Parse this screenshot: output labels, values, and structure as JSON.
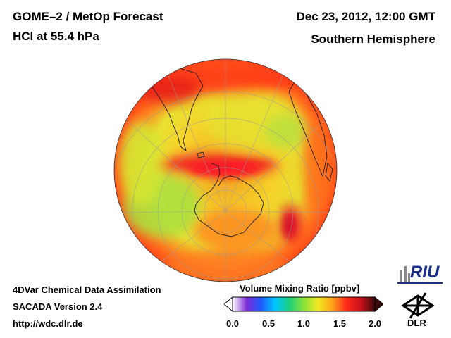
{
  "header": {
    "title_line1": "GOME–2 / MetOp Forecast",
    "title_line2": "HCl at 55.4 hPa",
    "datetime": "Dec 23, 2012, 12:00 GMT",
    "region": "Southern Hemisphere"
  },
  "footer": {
    "line1": "4DVar Chemical Data Assimilation",
    "line2": "SACADA Version 2.4",
    "line3": "http://wdc.dlr.de"
  },
  "colorbar": {
    "title": "Volume Mixing Ratio [ppbv]",
    "ticks": [
      "0.0",
      "0.5",
      "1.0",
      "1.5",
      "2.0"
    ],
    "range": [
      0.0,
      2.0
    ],
    "stops": [
      "#ffffff",
      "#7a2bd6",
      "#1e5bff",
      "#00c8ff",
      "#1fd07a",
      "#88e23a",
      "#f2ea22",
      "#ffa21a",
      "#ff2a1a",
      "#c8101a",
      "#3a0a0a"
    ]
  },
  "map": {
    "projection": "orthographic, south polar",
    "field": "HCl volume mixing ratio",
    "ocean_base_color": "#f0c030"
  },
  "logos": {
    "riu": "RIU",
    "dlr": "DLR"
  }
}
